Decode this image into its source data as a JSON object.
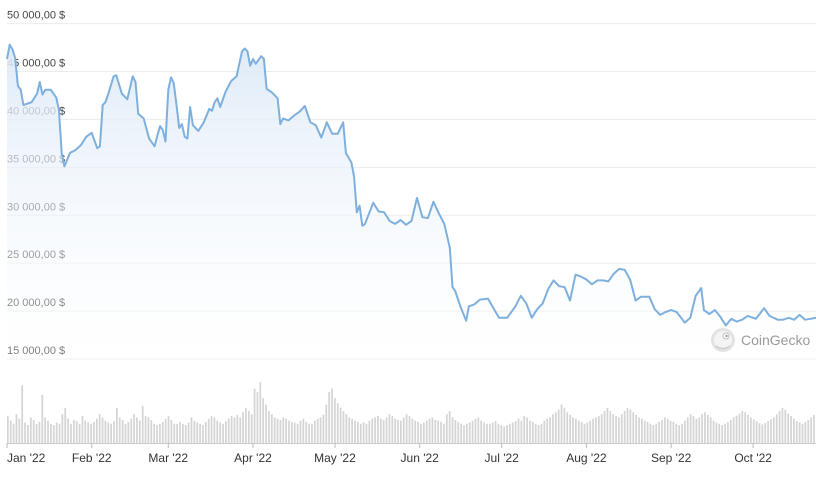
{
  "chart_data": {
    "type": "area",
    "y_tick_labels": [
      "50 000,00 $",
      "45 000,00 $",
      "40 000,00 $",
      "35 000,00 $",
      "30 000,00 $",
      "25 000,00 $",
      "20 000,00 $",
      "15 000,00 $"
    ],
    "y_ticks": [
      50000,
      45000,
      40000,
      35000,
      30000,
      25000,
      20000,
      15000
    ],
    "ylim": [
      15000,
      51000
    ],
    "x_tick_labels": [
      "Jan '22",
      "Feb '22",
      "Mar '22",
      "Apr '22",
      "May '22",
      "Jun '22",
      "Jul '22",
      "Aug '22",
      "Sep '22",
      "Oct '22"
    ],
    "x_ticks": [
      "2022-01-01",
      "2022-02-01",
      "2022-03-01",
      "2022-04-01",
      "2022-05-01",
      "2022-06-01",
      "2022-07-01",
      "2022-08-01",
      "2022-09-01",
      "2022-10-01"
    ],
    "xlim": [
      "2022-01-01",
      "2022-10-24"
    ],
    "grid": true,
    "colors": {
      "line": "#7eb0de",
      "fill_top": "#dce9f7",
      "fill_bottom": "#ffffff",
      "grid": "#ececec",
      "volume": "#d4d4d4"
    },
    "price_series": [
      [
        "2022-01-01",
        46300
      ],
      [
        "2022-01-02",
        47800
      ],
      [
        "2022-01-03",
        47300
      ],
      [
        "2022-01-04",
        46400
      ],
      [
        "2022-01-05",
        43500
      ],
      [
        "2022-01-06",
        43100
      ],
      [
        "2022-01-07",
        41500
      ],
      [
        "2022-01-10",
        41800
      ],
      [
        "2022-01-12",
        42700
      ],
      [
        "2022-01-13",
        43900
      ],
      [
        "2022-01-14",
        42600
      ],
      [
        "2022-01-15",
        43100
      ],
      [
        "2022-01-17",
        43100
      ],
      [
        "2022-01-19",
        42300
      ],
      [
        "2022-01-20",
        41000
      ],
      [
        "2022-01-21",
        36500
      ],
      [
        "2022-01-22",
        35100
      ],
      [
        "2022-01-24",
        36500
      ],
      [
        "2022-01-26",
        36800
      ],
      [
        "2022-01-28",
        37300
      ],
      [
        "2022-01-30",
        38200
      ],
      [
        "2022-02-01",
        38600
      ],
      [
        "2022-02-03",
        37000
      ],
      [
        "2022-02-04",
        37200
      ],
      [
        "2022-02-05",
        41500
      ],
      [
        "2022-02-06",
        41800
      ],
      [
        "2022-02-07",
        42600
      ],
      [
        "2022-02-09",
        44500
      ],
      [
        "2022-02-10",
        44600
      ],
      [
        "2022-02-12",
        42700
      ],
      [
        "2022-02-14",
        42100
      ],
      [
        "2022-02-16",
        44500
      ],
      [
        "2022-02-17",
        43900
      ],
      [
        "2022-02-18",
        40600
      ],
      [
        "2022-02-20",
        40100
      ],
      [
        "2022-02-22",
        38000
      ],
      [
        "2022-02-24",
        37200
      ],
      [
        "2022-02-25",
        38300
      ],
      [
        "2022-02-26",
        39300
      ],
      [
        "2022-02-27",
        38900
      ],
      [
        "2022-02-28",
        37700
      ],
      [
        "2022-03-01",
        43100
      ],
      [
        "2022-03-02",
        44400
      ],
      [
        "2022-03-03",
        43800
      ],
      [
        "2022-03-04",
        41500
      ],
      [
        "2022-03-05",
        39100
      ],
      [
        "2022-03-06",
        39500
      ],
      [
        "2022-03-07",
        38200
      ],
      [
        "2022-03-08",
        38000
      ],
      [
        "2022-03-09",
        41300
      ],
      [
        "2022-03-10",
        39400
      ],
      [
        "2022-03-12",
        38800
      ],
      [
        "2022-03-14",
        39700
      ],
      [
        "2022-03-16",
        41100
      ],
      [
        "2022-03-17",
        40900
      ],
      [
        "2022-03-18",
        41800
      ],
      [
        "2022-03-19",
        42200
      ],
      [
        "2022-03-20",
        41300
      ],
      [
        "2022-03-22",
        42900
      ],
      [
        "2022-03-24",
        44000
      ],
      [
        "2022-03-26",
        44500
      ],
      [
        "2022-03-28",
        47100
      ],
      [
        "2022-03-29",
        47400
      ],
      [
        "2022-03-30",
        47100
      ],
      [
        "2022-03-31",
        45600
      ],
      [
        "2022-04-01",
        46300
      ],
      [
        "2022-04-02",
        45800
      ],
      [
        "2022-04-04",
        46600
      ],
      [
        "2022-04-05",
        46300
      ],
      [
        "2022-04-06",
        43200
      ],
      [
        "2022-04-08",
        42800
      ],
      [
        "2022-04-10",
        42200
      ],
      [
        "2022-04-11",
        39500
      ],
      [
        "2022-04-12",
        40100
      ],
      [
        "2022-04-14",
        39900
      ],
      [
        "2022-04-16",
        40400
      ],
      [
        "2022-04-18",
        40800
      ],
      [
        "2022-04-20",
        41400
      ],
      [
        "2022-04-22",
        39700
      ],
      [
        "2022-04-24",
        39400
      ],
      [
        "2022-04-26",
        38100
      ],
      [
        "2022-04-28",
        39700
      ],
      [
        "2022-04-30",
        38500
      ],
      [
        "2022-05-02",
        38500
      ],
      [
        "2022-05-04",
        39700
      ],
      [
        "2022-05-05",
        36500
      ],
      [
        "2022-05-07",
        35500
      ],
      [
        "2022-05-08",
        34000
      ],
      [
        "2022-05-09",
        30300
      ],
      [
        "2022-05-10",
        31000
      ],
      [
        "2022-05-11",
        28900
      ],
      [
        "2022-05-12",
        29100
      ],
      [
        "2022-05-15",
        31300
      ],
      [
        "2022-05-17",
        30400
      ],
      [
        "2022-05-19",
        30300
      ],
      [
        "2022-05-21",
        29400
      ],
      [
        "2022-05-23",
        29100
      ],
      [
        "2022-05-25",
        29500
      ],
      [
        "2022-05-27",
        29000
      ],
      [
        "2022-05-29",
        29400
      ],
      [
        "2022-05-31",
        31800
      ],
      [
        "2022-06-02",
        29800
      ],
      [
        "2022-06-04",
        29700
      ],
      [
        "2022-06-06",
        31400
      ],
      [
        "2022-06-08",
        30200
      ],
      [
        "2022-06-10",
        29100
      ],
      [
        "2022-06-12",
        26600
      ],
      [
        "2022-06-13",
        22500
      ],
      [
        "2022-06-14",
        22100
      ],
      [
        "2022-06-16",
        20400
      ],
      [
        "2022-06-18",
        19000
      ],
      [
        "2022-06-19",
        20500
      ],
      [
        "2022-06-21",
        20700
      ],
      [
        "2022-06-23",
        21200
      ],
      [
        "2022-06-26",
        21300
      ],
      [
        "2022-06-28",
        20300
      ],
      [
        "2022-06-30",
        19300
      ],
      [
        "2022-07-03",
        19300
      ],
      [
        "2022-07-06",
        20500
      ],
      [
        "2022-07-08",
        21600
      ],
      [
        "2022-07-10",
        20800
      ],
      [
        "2022-07-12",
        19300
      ],
      [
        "2022-07-14",
        20200
      ],
      [
        "2022-07-16",
        20800
      ],
      [
        "2022-07-18",
        22300
      ],
      [
        "2022-07-20",
        23200
      ],
      [
        "2022-07-22",
        22600
      ],
      [
        "2022-07-24",
        22500
      ],
      [
        "2022-07-26",
        21100
      ],
      [
        "2022-07-28",
        23800
      ],
      [
        "2022-07-30",
        23600
      ],
      [
        "2022-08-01",
        23300
      ],
      [
        "2022-08-03",
        22800
      ],
      [
        "2022-08-05",
        23200
      ],
      [
        "2022-08-07",
        23200
      ],
      [
        "2022-08-09",
        23100
      ],
      [
        "2022-08-11",
        23900
      ],
      [
        "2022-08-13",
        24400
      ],
      [
        "2022-08-15",
        24300
      ],
      [
        "2022-08-17",
        23300
      ],
      [
        "2022-08-19",
        21100
      ],
      [
        "2022-08-21",
        21500
      ],
      [
        "2022-08-24",
        21500
      ],
      [
        "2022-08-26",
        20200
      ],
      [
        "2022-08-28",
        19600
      ],
      [
        "2022-08-30",
        19900
      ],
      [
        "2022-09-01",
        20100
      ],
      [
        "2022-09-03",
        19900
      ],
      [
        "2022-09-06",
        18800
      ],
      [
        "2022-09-08",
        19300
      ],
      [
        "2022-09-10",
        21600
      ],
      [
        "2022-09-12",
        22400
      ],
      [
        "2022-09-13",
        20100
      ],
      [
        "2022-09-15",
        19700
      ],
      [
        "2022-09-17",
        20100
      ],
      [
        "2022-09-19",
        19400
      ],
      [
        "2022-09-21",
        18500
      ],
      [
        "2022-09-23",
        19200
      ],
      [
        "2022-09-25",
        18900
      ],
      [
        "2022-09-27",
        19100
      ],
      [
        "2022-09-29",
        19500
      ],
      [
        "2022-10-02",
        19200
      ],
      [
        "2022-10-05",
        20300
      ],
      [
        "2022-10-07",
        19500
      ],
      [
        "2022-10-10",
        19100
      ],
      [
        "2022-10-12",
        19100
      ],
      [
        "2022-10-14",
        19300
      ],
      [
        "2022-10-16",
        19100
      ],
      [
        "2022-10-18",
        19600
      ],
      [
        "2022-10-20",
        19100
      ],
      [
        "2022-10-22",
        19200
      ],
      [
        "2022-10-24",
        19300
      ]
    ],
    "volume_relative": [
      0.42,
      0.35,
      0.3,
      0.45,
      0.38,
      0.9,
      0.32,
      0.28,
      0.4,
      0.36,
      0.3,
      0.33,
      0.75,
      0.4,
      0.35,
      0.3,
      0.28,
      0.32,
      0.3,
      0.45,
      0.55,
      0.38,
      0.3,
      0.36,
      0.34,
      0.3,
      0.42,
      0.35,
      0.32,
      0.3,
      0.33,
      0.38,
      0.45,
      0.4,
      0.35,
      0.32,
      0.3,
      0.34,
      0.55,
      0.4,
      0.36,
      0.3,
      0.33,
      0.38,
      0.45,
      0.4,
      0.35,
      0.58,
      0.42,
      0.4,
      0.36,
      0.3,
      0.28,
      0.3,
      0.33,
      0.38,
      0.42,
      0.36,
      0.3,
      0.3,
      0.33,
      0.3,
      0.28,
      0.32,
      0.4,
      0.35,
      0.32,
      0.3,
      0.28,
      0.33,
      0.38,
      0.42,
      0.4,
      0.35,
      0.32,
      0.3,
      0.34,
      0.38,
      0.42,
      0.4,
      0.44,
      0.4,
      0.48,
      0.55,
      0.5,
      0.45,
      0.85,
      0.8,
      0.95,
      0.7,
      0.6,
      0.5,
      0.45,
      0.4,
      0.38,
      0.36,
      0.4,
      0.38,
      0.35,
      0.33,
      0.32,
      0.3,
      0.35,
      0.38,
      0.33,
      0.3,
      0.3,
      0.35,
      0.38,
      0.4,
      0.44,
      0.6,
      0.8,
      0.85,
      0.7,
      0.62,
      0.55,
      0.5,
      0.45,
      0.4,
      0.38,
      0.35,
      0.33,
      0.3,
      0.32,
      0.3,
      0.35,
      0.38,
      0.4,
      0.42,
      0.38,
      0.36,
      0.4,
      0.45,
      0.42,
      0.38,
      0.36,
      0.35,
      0.4,
      0.45,
      0.42,
      0.38,
      0.35,
      0.33,
      0.3,
      0.32,
      0.35,
      0.38,
      0.4,
      0.36,
      0.35,
      0.33,
      0.3,
      0.45,
      0.5,
      0.4,
      0.36,
      0.33,
      0.3,
      0.28,
      0.3,
      0.32,
      0.35,
      0.38,
      0.4,
      0.35,
      0.32,
      0.3,
      0.3,
      0.32,
      0.34,
      0.3,
      0.28,
      0.26,
      0.28,
      0.3,
      0.32,
      0.34,
      0.38,
      0.35,
      0.42,
      0.4,
      0.35,
      0.33,
      0.3,
      0.28,
      0.3,
      0.35,
      0.38,
      0.4,
      0.45,
      0.48,
      0.52,
      0.6,
      0.55,
      0.48,
      0.44,
      0.4,
      0.38,
      0.35,
      0.33,
      0.3,
      0.32,
      0.35,
      0.38,
      0.4,
      0.42,
      0.45,
      0.5,
      0.55,
      0.5,
      0.45,
      0.42,
      0.4,
      0.45,
      0.5,
      0.55,
      0.52,
      0.48,
      0.44,
      0.4,
      0.38,
      0.35,
      0.33,
      0.3,
      0.28,
      0.3,
      0.33,
      0.36,
      0.4,
      0.38,
      0.35,
      0.33,
      0.3,
      0.28,
      0.3,
      0.35,
      0.4,
      0.45,
      0.42,
      0.38,
      0.4,
      0.45,
      0.48,
      0.44,
      0.4,
      0.35,
      0.32,
      0.3,
      0.28,
      0.3,
      0.33,
      0.36,
      0.4,
      0.43,
      0.46,
      0.5,
      0.48,
      0.44,
      0.4,
      0.37,
      0.34,
      0.31,
      0.29,
      0.31,
      0.34,
      0.37,
      0.4,
      0.45,
      0.5,
      0.55,
      0.52,
      0.46,
      0.42,
      0.38,
      0.34,
      0.32,
      0.3,
      0.33,
      0.36,
      0.4,
      0.44
    ]
  },
  "watermark": {
    "text": "CoinGecko",
    "icon": "gecko-logo-icon"
  }
}
